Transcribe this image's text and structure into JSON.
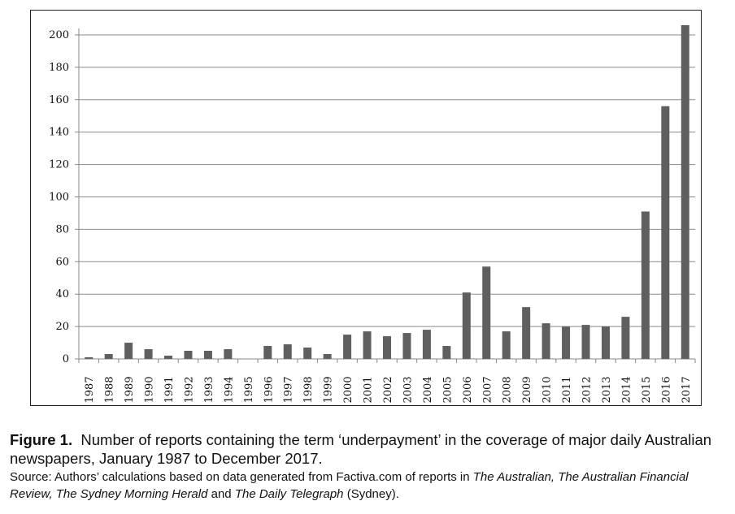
{
  "chart_data": {
    "type": "bar",
    "categories": [
      "1987",
      "1988",
      "1989",
      "1990",
      "1991",
      "1992",
      "1993",
      "1994",
      "1995",
      "1996",
      "1997",
      "1998",
      "1999",
      "2000",
      "2001",
      "2002",
      "2003",
      "2004",
      "2005",
      "2006",
      "2007",
      "2008",
      "2009",
      "2010",
      "2011",
      "2012",
      "2013",
      "2014",
      "2015",
      "2016",
      "2017"
    ],
    "values": [
      1,
      3,
      10,
      6,
      2,
      5,
      5,
      6,
      0,
      8,
      9,
      7,
      3,
      15,
      17,
      14,
      16,
      18,
      8,
      41,
      57,
      17,
      32,
      22,
      20,
      21,
      20,
      26,
      91,
      156,
      206
    ],
    "ylim": [
      0,
      200
    ],
    "yticks": [
      0,
      20,
      40,
      60,
      80,
      100,
      120,
      140,
      160,
      180,
      200
    ],
    "grid": true,
    "bar_color": "#5f5f5f",
    "title": "",
    "xlabel": "",
    "ylabel": ""
  },
  "caption": {
    "label": "Figure 1.",
    "text": "Number of reports containing the term ‘underpayment’ in the coverage of major daily Australian newspapers, January 1987 to December 2017.",
    "source_prefix": "Source: Authors’ calculations based on data generated from Factiva.com of reports in ",
    "source_italic_1": "The Australian, The Australian Financial Review, The Sydney Morning Herald",
    "source_mid": " and ",
    "source_italic_2": "The Daily Telegraph",
    "source_suffix": " (Sydney)."
  }
}
